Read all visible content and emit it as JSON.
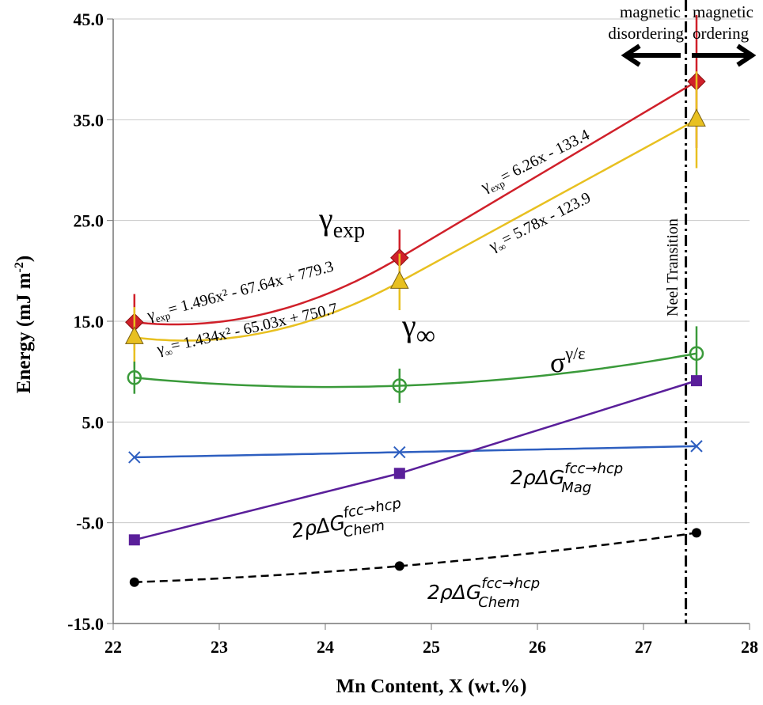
{
  "chart_data": {
    "type": "line",
    "title": "",
    "xlabel": "Mn Content, X (wt.%)",
    "ylabel": "Energy (mJ m",
    "ylabel_sup": "-2",
    "ylabel_end": ")",
    "xlim": [
      22,
      28
    ],
    "ylim": [
      -15,
      45
    ],
    "xticks": [
      "22",
      "23",
      "24",
      "25",
      "26",
      "27",
      "28"
    ],
    "yticks": [
      "-15.0",
      "-5.0",
      "5.0",
      "15.0",
      "25.0",
      "35.0",
      "45.0"
    ],
    "grid": "horizontal",
    "x": [
      22.2,
      24.7,
      27.5
    ],
    "series": [
      {
        "key": "gexp",
        "color": "#d0202a",
        "marker": "diamond",
        "values": [
          14.9,
          21.3,
          38.8
        ],
        "err": [
          2.8,
          2.8,
          6.6
        ],
        "fit": "quad-then-linear"
      },
      {
        "key": "ginf",
        "color": "#e8c020",
        "marker": "triangle",
        "values": [
          13.4,
          18.9,
          35.0
        ],
        "err": [
          3.0,
          2.8,
          4.8
        ],
        "fit": "quad-then-linear"
      },
      {
        "key": "sigma",
        "color": "#3a9a3a",
        "marker": "open-circle",
        "values": [
          9.4,
          8.6,
          11.8
        ],
        "err": [
          1.6,
          1.7,
          2.7
        ],
        "fit": "smooth"
      },
      {
        "key": "mag",
        "color": "#2e5fc0",
        "marker": "x",
        "values": [
          1.5,
          2.0,
          2.6
        ],
        "fit": "smooth"
      },
      {
        "key": "chem",
        "color": "#5a1f9a",
        "marker": "square",
        "values": [
          -6.7,
          -0.1,
          9.1
        ],
        "fit": "straight"
      },
      {
        "key": "chem2",
        "color": "#000000",
        "marker": "dot",
        "values": [
          -10.9,
          -9.3,
          -6.0
        ],
        "fit": "smooth-dashed"
      }
    ],
    "neel_x": 27.4,
    "annotations": {
      "gexp_label": "γ",
      "gexp_sub": "exp",
      "ginf_label": "γ",
      "ginf_sub": "∞",
      "sigma_label": "σ",
      "sigma_sup": "γ/ε",
      "gexp_linear": "= 6.26x - 133.4",
      "ginf_linear": "= 5.78x - 123.9",
      "gexp_quad": "= 1.496x² - 67.64x + 779.3",
      "ginf_quad": "= 1.434x² - 65.03x + 750.7",
      "dg_prefix": "2ρΔG",
      "dg_sup": "fcc→hcp",
      "dg_mag_sub": "Mag",
      "dg_chem_sub": "Chem",
      "neel": "Neel Transition",
      "mag_left_1": "magnetic",
      "mag_left_2": "disordering",
      "mag_right_1": "magnetic",
      "mag_right_2": "ordering"
    }
  }
}
